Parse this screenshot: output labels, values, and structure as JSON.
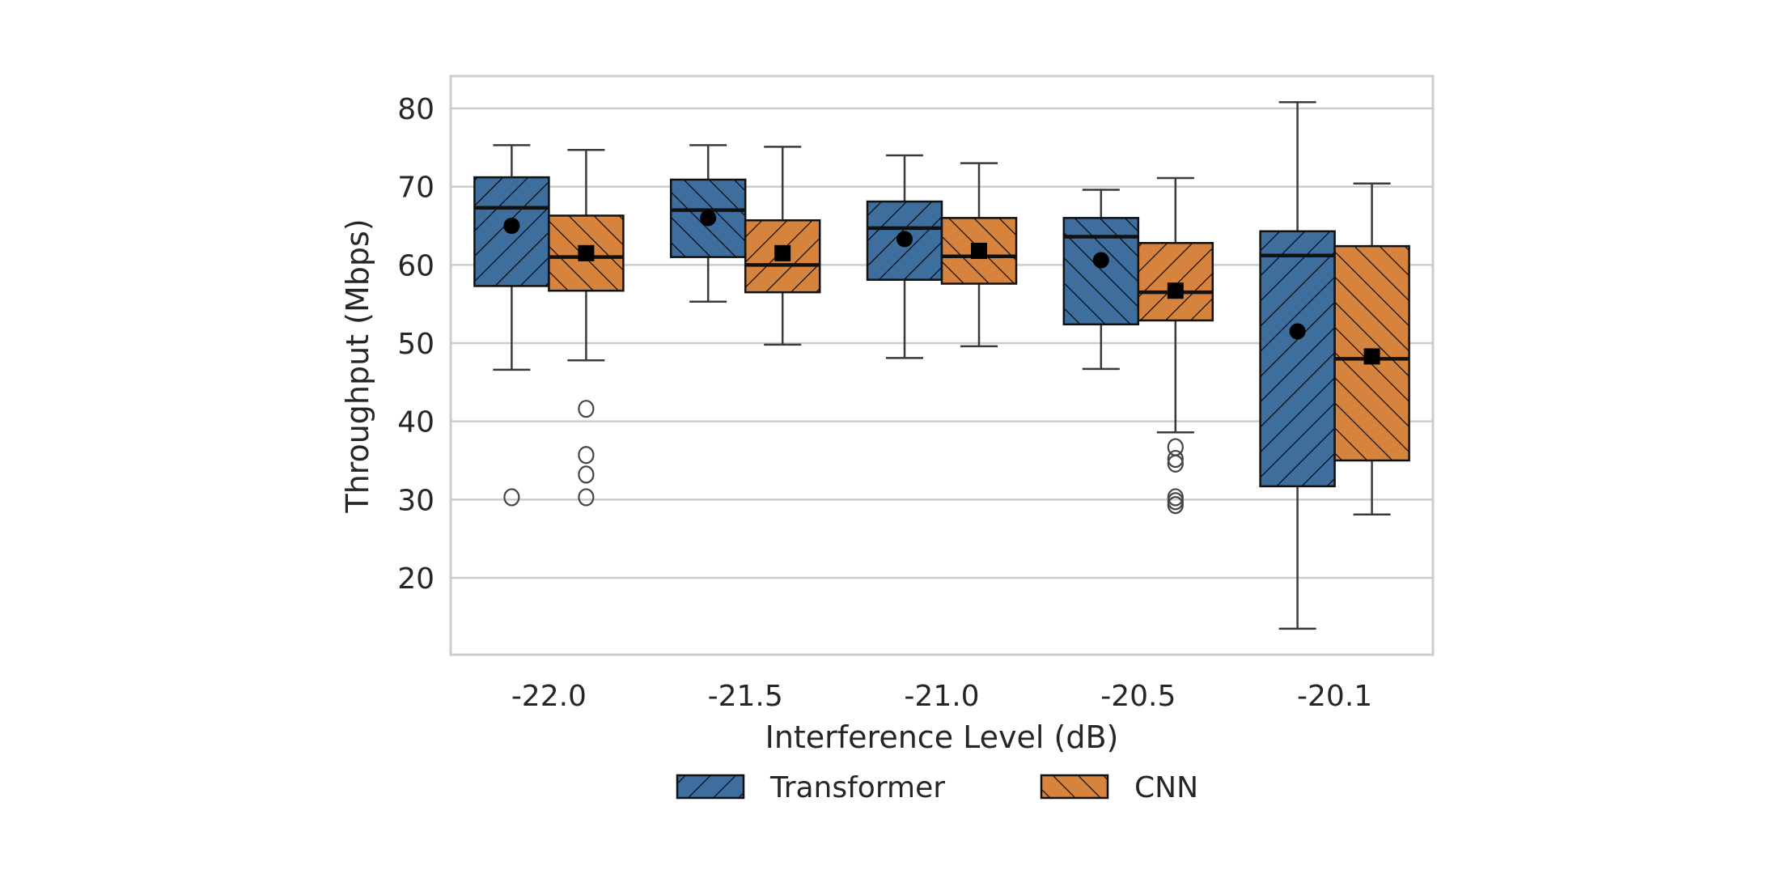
{
  "chart_data": {
    "type": "box",
    "title": "",
    "xlabel": "Interference Level (dB)",
    "ylabel": "Throughput (Mbps)",
    "ylim": [
      10,
      84
    ],
    "yticks": [
      20,
      30,
      40,
      50,
      60,
      70,
      80
    ],
    "grid": true,
    "legend_position": "bottom-center",
    "categories": [
      "-22.0",
      "-21.5",
      "-21.0",
      "-20.5",
      "-20.1"
    ],
    "series": [
      {
        "name": "Transformer",
        "color": "#3d6e9e",
        "mean_marker": "circle",
        "boxes": [
          {
            "whislo": 46.6,
            "q1": 57.3,
            "med": 67.3,
            "q3": 71.2,
            "whishi": 75.3,
            "mean": 65.0,
            "fliers": [
              30.3
            ]
          },
          {
            "whislo": 55.3,
            "q1": 61.0,
            "med": 67.0,
            "q3": 70.9,
            "whishi": 75.3,
            "mean": 66.0,
            "fliers": []
          },
          {
            "whislo": 48.1,
            "q1": 58.1,
            "med": 64.7,
            "q3": 68.1,
            "whishi": 74.0,
            "mean": 63.3,
            "fliers": []
          },
          {
            "whislo": 46.7,
            "q1": 52.4,
            "med": 63.6,
            "q3": 66.0,
            "whishi": 69.6,
            "mean": 60.6,
            "fliers": []
          },
          {
            "whislo": 13.5,
            "q1": 31.7,
            "med": 61.2,
            "q3": 64.3,
            "whishi": 80.8,
            "mean": 51.5,
            "fliers": []
          }
        ]
      },
      {
        "name": "CNN",
        "color": "#d6843d",
        "mean_marker": "square",
        "boxes": [
          {
            "whislo": 47.8,
            "q1": 56.7,
            "med": 61.0,
            "q3": 66.3,
            "whishi": 74.7,
            "mean": 61.5,
            "fliers": [
              41.6,
              35.7,
              33.2,
              30.3
            ]
          },
          {
            "whislo": 49.8,
            "q1": 56.5,
            "med": 60.0,
            "q3": 65.7,
            "whishi": 75.1,
            "mean": 61.5,
            "fliers": []
          },
          {
            "whislo": 49.6,
            "q1": 57.6,
            "med": 61.1,
            "q3": 66.0,
            "whishi": 73.0,
            "mean": 61.8,
            "fliers": []
          },
          {
            "whislo": 38.6,
            "q1": 52.9,
            "med": 56.5,
            "q3": 62.8,
            "whishi": 71.1,
            "mean": 56.7,
            "fliers": [
              36.7,
              35.2,
              34.6,
              30.3,
              29.8,
              29.3
            ]
          },
          {
            "whislo": 28.1,
            "q1": 35.0,
            "med": 48.0,
            "q3": 62.4,
            "whishi": 70.4,
            "mean": 48.3,
            "fliers": []
          }
        ]
      }
    ]
  }
}
